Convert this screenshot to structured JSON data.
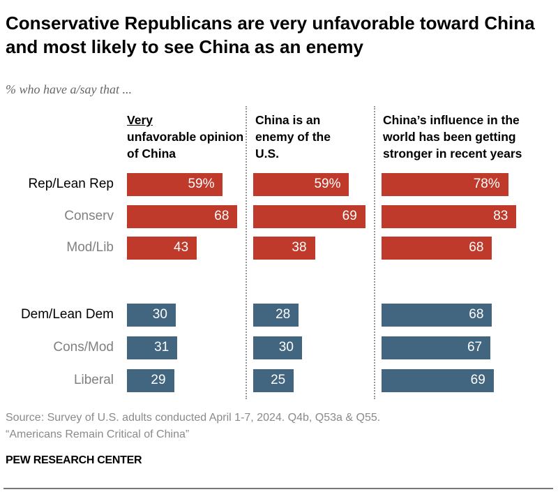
{
  "title": "Conservative Republicans are very unfavorable toward China and most likely to see China as an enemy",
  "subtitle": "% who have a/say that ...",
  "chart_data": {
    "type": "bar",
    "orientation": "horizontal",
    "panels": [
      {
        "header_underlined": "Very",
        "header_rest": "unfavorable opinion of China",
        "values": [
          59,
          68,
          43,
          30,
          31,
          29
        ]
      },
      {
        "header_underlined": "",
        "header_rest": "China is an enemy of the U.S.",
        "values": [
          59,
          69,
          38,
          28,
          30,
          25
        ]
      },
      {
        "header_underlined": "",
        "header_rest": "China’s influence in the world has been getting stronger in recent years",
        "values": [
          78,
          83,
          68,
          68,
          67,
          69
        ]
      }
    ],
    "categories": [
      "Rep/Lean Rep",
      "Conserv",
      "Mod/Lib",
      "Dem/Lean Dem",
      "Cons/Mod",
      "Liberal"
    ],
    "category_emphasis": [
      true,
      false,
      false,
      true,
      false,
      false
    ],
    "first_row_suffix": "%",
    "colors": {
      "rep": "#bf3a2b",
      "dem": "#436680",
      "sub_label": "#808080"
    },
    "xlim": [
      0,
      100
    ]
  },
  "source": "Source: Survey of U.S. adults conducted April 1-7, 2024. Q4b, Q53a & Q55.",
  "report": "“Americans Remain Critical of China”",
  "logo": "PEW RESEARCH CENTER"
}
